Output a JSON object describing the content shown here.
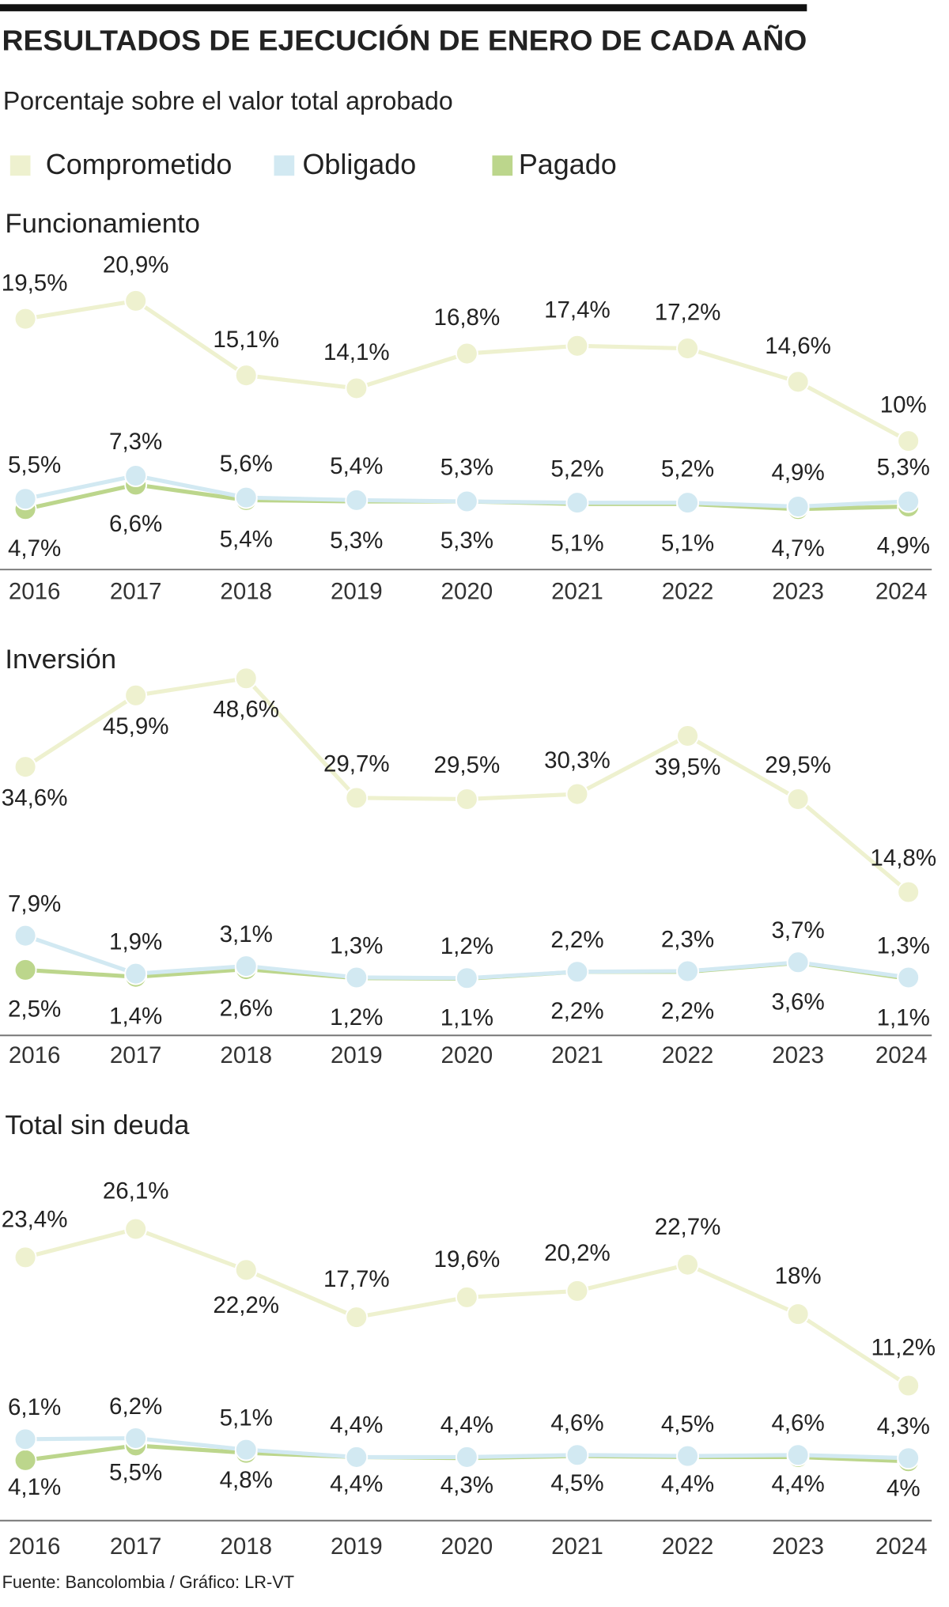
{
  "header": {
    "title": "RESULTADOS DE EJECUCIÓN DE ENERO DE CADA AÑO",
    "subtitle": "Porcentaje sobre el valor total aprobado"
  },
  "source": "Fuente: Bancolombia / Gráfico: LR-VT",
  "chart_data": [
    {
      "type": "line",
      "title": "Funcionamiento",
      "categories": [
        "2016",
        "2017",
        "2018",
        "2019",
        "2020",
        "2021",
        "2022",
        "2023",
        "2024"
      ],
      "ylim": [
        0,
        24
      ],
      "series": [
        {
          "name": "Comprometido",
          "color": "#eef1cf",
          "values": [
            19.5,
            20.9,
            15.1,
            14.1,
            16.8,
            17.4,
            17.2,
            14.6,
            10
          ],
          "value_labels": [
            "19,5%",
            "20,9%",
            "15,1%",
            "14,1%",
            "16,8%",
            "17,4%",
            "17,2%",
            "14,6%",
            "10%"
          ]
        },
        {
          "name": "Obligado",
          "color": "#d2e9f2",
          "values": [
            5.5,
            7.3,
            5.6,
            5.4,
            5.3,
            5.2,
            5.2,
            4.9,
            5.3
          ],
          "value_labels": [
            "5,5%",
            "7,3%",
            "5,6%",
            "5,4%",
            "5,3%",
            "5,2%",
            "5,2%",
            "4,9%",
            "5,3%"
          ]
        },
        {
          "name": "Pagado",
          "color": "#bcd68c",
          "values": [
            4.7,
            6.6,
            5.4,
            5.3,
            5.3,
            5.1,
            5.1,
            4.7,
            4.9
          ],
          "value_labels": [
            "4,7%",
            "6,6%",
            "5,4%",
            "5,3%",
            "5,3%",
            "5,1%",
            "5,1%",
            "4,7%",
            "4,9%"
          ]
        }
      ]
    },
    {
      "type": "line",
      "title": "Inversión",
      "categories": [
        "2016",
        "2017",
        "2018",
        "2019",
        "2020",
        "2021",
        "2022",
        "2023",
        "2024"
      ],
      "ylim": [
        0,
        52
      ],
      "series": [
        {
          "color": "#eef1cf",
          "values": [
            34.6,
            45.9,
            48.6,
            29.7,
            29.5,
            30.3,
            39.5,
            29.5,
            14.8
          ],
          "value_labels": [
            "34,6%",
            "45,9%",
            "48,6%",
            "29,7%",
            "29,5%",
            "30,3%",
            "39,5%",
            "29,5%",
            "14,8%"
          ]
        },
        {
          "color": "#d2e9f2",
          "values": [
            7.9,
            1.9,
            3.1,
            1.3,
            1.2,
            2.2,
            2.3,
            3.7,
            1.3
          ],
          "value_labels": [
            "7,9%",
            "1,9%",
            "3,1%",
            "1,3%",
            "1,2%",
            "2,2%",
            "2,3%",
            "3,7%",
            "1,3%"
          ]
        },
        {
          "color": "#bcd68c",
          "values": [
            2.5,
            1.4,
            2.6,
            1.2,
            1.1,
            2.2,
            2.2,
            3.6,
            1.1
          ],
          "value_labels": [
            "2,5%",
            "1,4%",
            "2,6%",
            "1,2%",
            "1,1%",
            "2,2%",
            "2,2%",
            "3,6%",
            "1,1%"
          ]
        }
      ]
    },
    {
      "type": "line",
      "title": "Total sin deuda",
      "categories": [
        "2016",
        "2017",
        "2018",
        "2019",
        "2020",
        "2021",
        "2022",
        "2023",
        "2024"
      ],
      "ylim": [
        0,
        28
      ],
      "series": [
        {
          "color": "#eef1cf",
          "values": [
            23.4,
            26.1,
            22.2,
            17.7,
            19.6,
            20.2,
            22.7,
            18,
            11.2
          ],
          "value_labels": [
            "23,4%",
            "26,1%",
            "22,2%",
            "17,7%",
            "19,6%",
            "20,2%",
            "22,7%",
            "18%",
            "11,2%"
          ]
        },
        {
          "color": "#d2e9f2",
          "values": [
            6.1,
            6.2,
            5.1,
            4.4,
            4.4,
            4.6,
            4.5,
            4.6,
            4.3
          ],
          "value_labels": [
            "6,1%",
            "6,2%",
            "5,1%",
            "4,4%",
            "4,4%",
            "4,6%",
            "4,5%",
            "4,6%",
            "4,3%"
          ]
        },
        {
          "color": "#bcd68c",
          "values": [
            4.1,
            5.5,
            4.8,
            4.4,
            4.3,
            4.5,
            4.4,
            4.4,
            4
          ],
          "value_labels": [
            "4,1%",
            "5,5%",
            "4,8%",
            "4,4%",
            "4,3%",
            "4,5%",
            "4,4%",
            "4,4%",
            "4%"
          ]
        }
      ]
    }
  ]
}
